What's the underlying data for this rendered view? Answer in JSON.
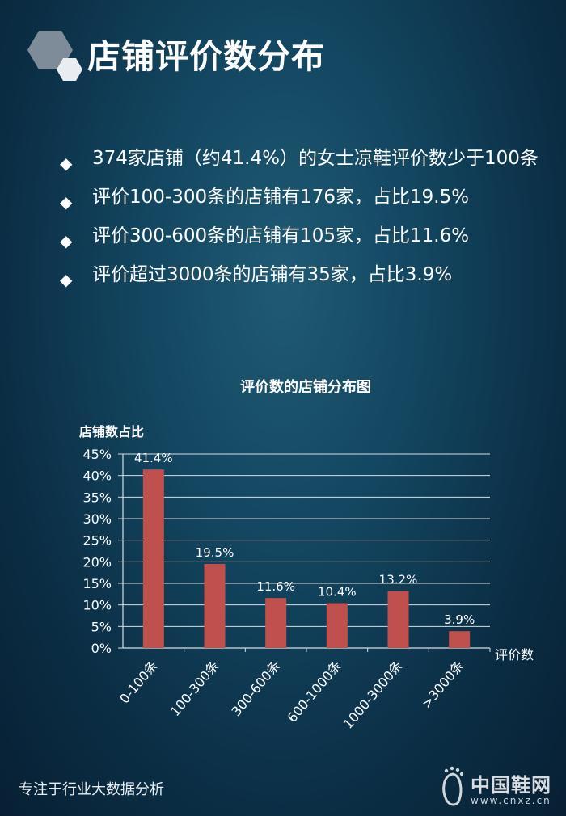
{
  "header": {
    "title": "店铺评价数分布"
  },
  "bullets": [
    "374家店铺（约41.4%）的女士凉鞋评价数少于100条",
    "评价100-300条的店铺有176家，占比19.5%",
    "评价300-600条的店铺有105家，占比11.6%",
    "评价超过3000条的店铺有35家，占比3.9%"
  ],
  "chart_data": {
    "type": "bar",
    "title": "评价数的店铺分布图",
    "ylabel": "店铺数占比",
    "xlabel": "评价数",
    "categories": [
      "0-100条",
      "100-300条",
      "300-600条",
      "600-1000条",
      "1000-3000条",
      ">3000条"
    ],
    "values": [
      41.4,
      19.5,
      11.6,
      10.4,
      13.2,
      3.9
    ],
    "value_labels": [
      "41.4%",
      "19.5%",
      "11.6%",
      "10.4%",
      "13.2%",
      "3.9%"
    ],
    "yticks": [
      "0%",
      "5%",
      "10%",
      "15%",
      "20%",
      "25%",
      "30%",
      "35%",
      "40%",
      "45%"
    ],
    "ylim": [
      0,
      45
    ],
    "grid": true,
    "colors": {
      "bar": "#c0504d",
      "grid": "#d8dde2",
      "text": "#ffffff"
    }
  },
  "footer": {
    "tagline": "专注于行业大数据分析",
    "brand_name": "中国鞋网",
    "brand_url": "www.cnxz.cn"
  }
}
